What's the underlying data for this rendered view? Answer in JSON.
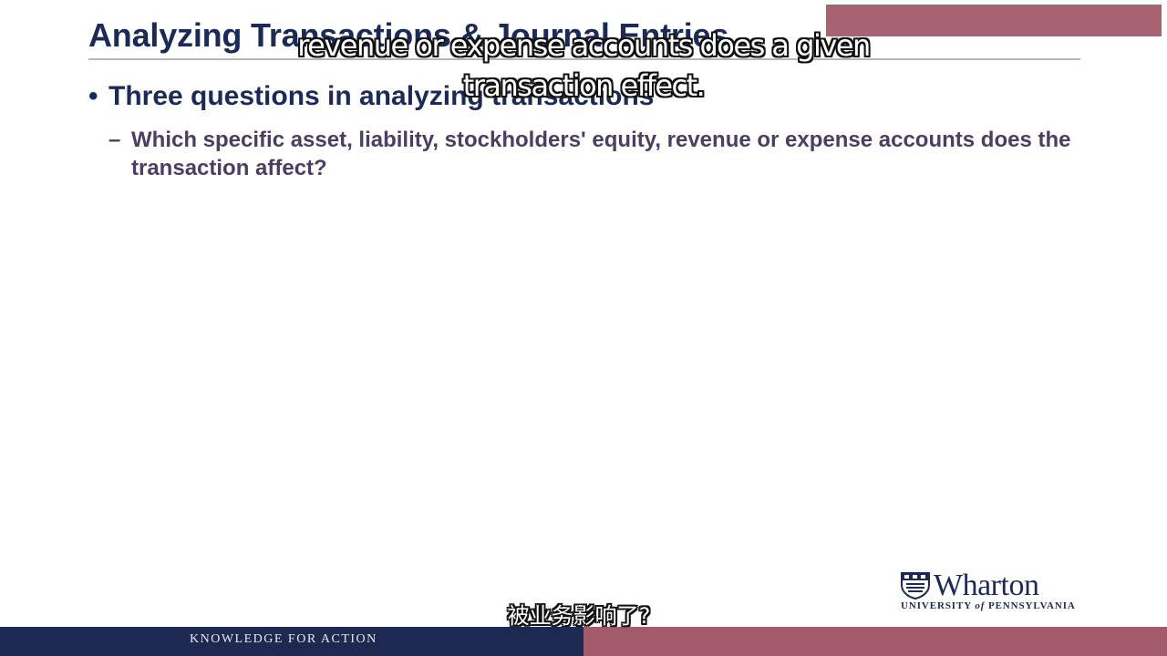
{
  "slide": {
    "title": "Analyzing Transactions & Journal Entries",
    "bullet": "Three questions in analyzing transactions",
    "sub_bullet": "Which specific asset, liability, stockholders' equity, revenue or expense accounts does the transaction affect?"
  },
  "captions": {
    "english": "revenue or expense accounts does a given transaction effect.",
    "chinese": "被业务影响了?"
  },
  "logo": {
    "name": "Wharton",
    "subtitle_prefix": "UNIVERSITY ",
    "subtitle_of": "of",
    "subtitle_suffix": " PENNSYLVANIA"
  },
  "footer": {
    "tagline": "KNOWLEDGE FOR ACTION"
  },
  "colors": {
    "navy": "#1b2a57",
    "maroon": "#a25b6a",
    "footer_navy": "#1d2950"
  },
  "icons": {
    "logo_mark": "penn-shield-icon"
  }
}
